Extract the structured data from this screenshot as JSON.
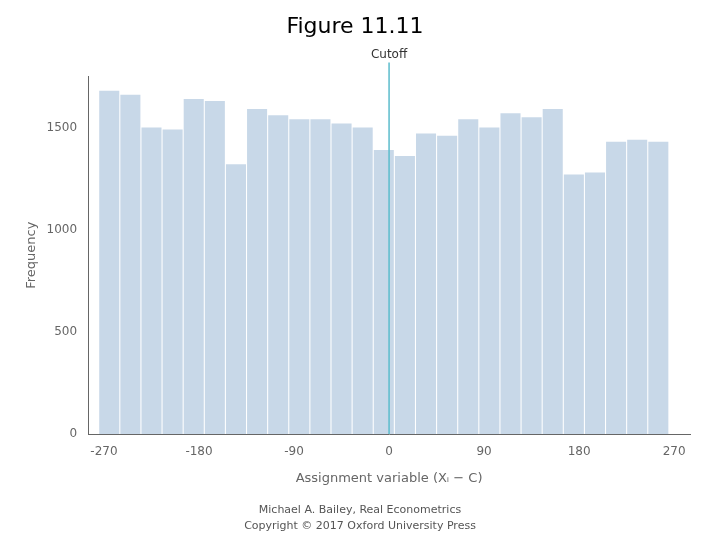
{
  "chart_data": {
    "type": "bar",
    "title": "Figure 11.11",
    "x_label": "Assignment variable (Xᵢ − C)",
    "y_label": "Frequency",
    "x": [
      -265,
      -245,
      -225,
      -205,
      -185,
      -165,
      -145,
      -125,
      -105,
      -85,
      -65,
      -45,
      -25,
      -5,
      15,
      35,
      55,
      75,
      95,
      115,
      135,
      155,
      175,
      195,
      215,
      235,
      255
    ],
    "values": [
      1680,
      1660,
      1500,
      1490,
      1640,
      1630,
      1320,
      1590,
      1560,
      1540,
      1540,
      1520,
      1500,
      1390,
      1360,
      1470,
      1460,
      1540,
      1500,
      1570,
      1550,
      1590,
      1270,
      1280,
      1430,
      1440,
      1430
    ],
    "color": "#c8d8e8",
    "xlim": [
      -285,
      285
    ],
    "xticks": [
      -270,
      -180,
      -90,
      0,
      90,
      180,
      270
    ],
    "ylim": [
      0,
      1750
    ],
    "yticks": [
      0,
      500,
      1000,
      1500
    ],
    "grid": false,
    "annotations": [
      {
        "x": 0,
        "text": "Cutoff",
        "color": "#5bbccc"
      },
      {
        "text": "Michael A. Bailey, Real Econometrics\nCopyright © 2017 Oxford University Press"
      }
    ]
  }
}
